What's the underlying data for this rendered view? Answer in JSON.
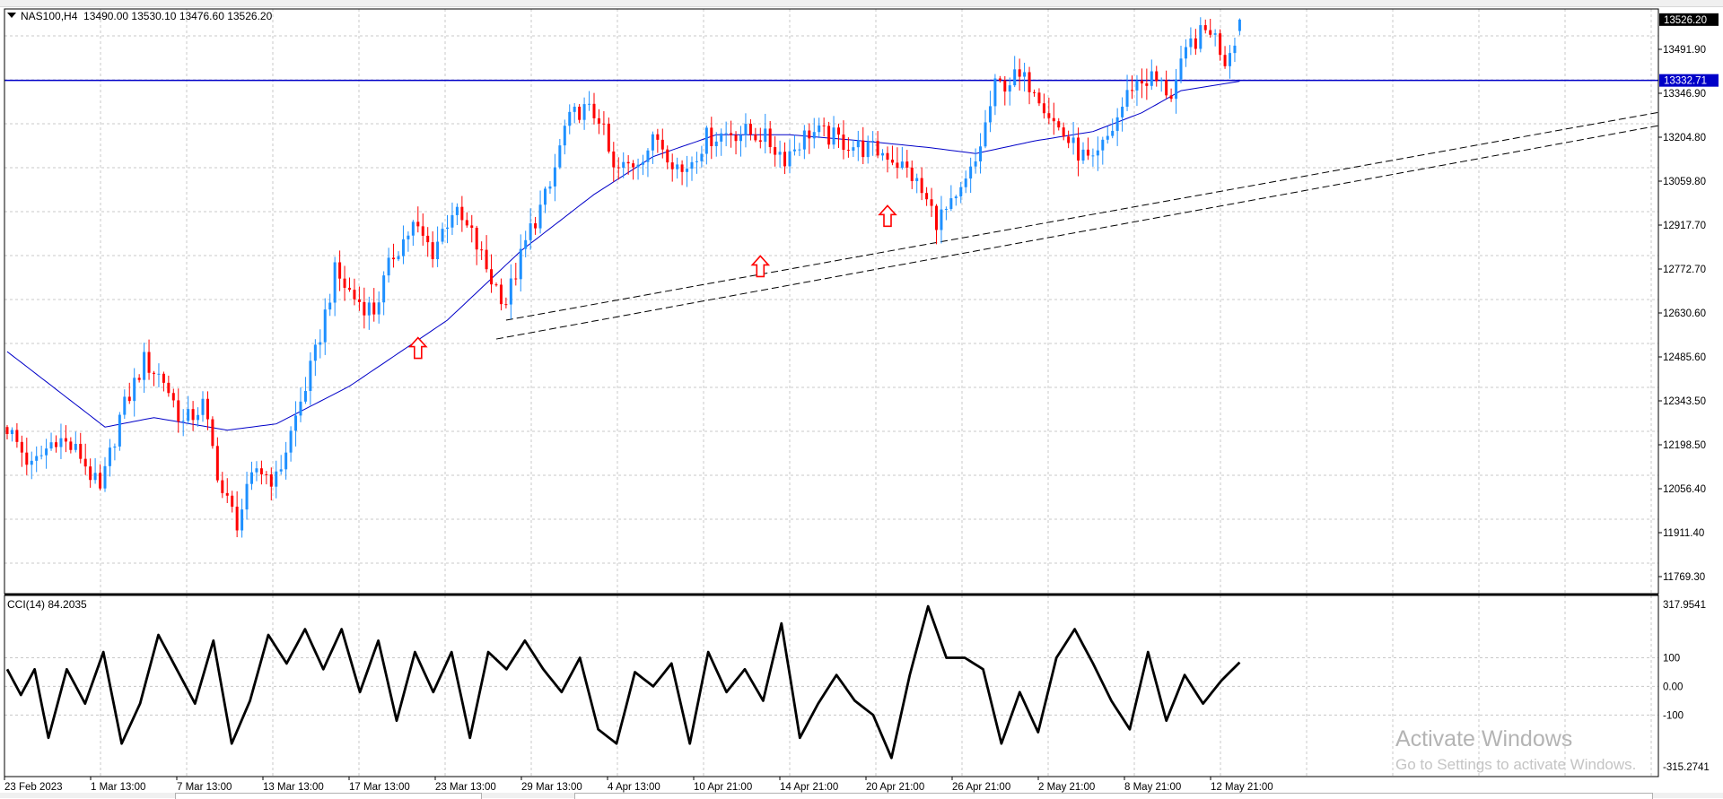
{
  "header": {
    "symbol": "NAS100,H4",
    "ohlc": "13490.00 13530.10 13476.60 13526.20"
  },
  "indicator": {
    "label": "CCI(14) 84.2035"
  },
  "price_axis": {
    "labels": [
      "13491.90",
      "13346.90",
      "13204.80",
      "13059.80",
      "12917.70",
      "12772.70",
      "12630.60",
      "12485.60",
      "12343.50",
      "12198.50",
      "12056.40",
      "11911.40",
      "11769.30"
    ],
    "current_price": "13526.20",
    "hline_price": "13332.71"
  },
  "cci_axis": {
    "labels": [
      "317.9541",
      "100",
      "0.00",
      "-100",
      "-315.2741"
    ]
  },
  "time_axis": {
    "labels": [
      "23 Feb 2023",
      "1 Mar 13:00",
      "7 Mar 13:00",
      "13 Mar 13:00",
      "17 Mar 13:00",
      "23 Mar 13:00",
      "29 Mar 13:00",
      "4 Apr 13:00",
      "10 Apr 21:00",
      "14 Apr 21:00",
      "20 Apr 21:00",
      "26 Apr 21:00",
      "2 May 21:00",
      "8 May 21:00",
      "12 May 21:00"
    ]
  },
  "watermark": {
    "line1": "Activate Windows",
    "line2": "Go to Settings to activate Windows."
  },
  "colors": {
    "bull": "#1e90ff",
    "bear": "#ff0000",
    "ma": "#0000c8",
    "hline": "#0000c8",
    "cci": "#000000",
    "grid": "#c8c8c8",
    "arrow": "#ff0000"
  },
  "chart_data": [
    {
      "type": "candlestick",
      "symbol": "NAS100",
      "timeframe": "H4",
      "ylim": [
        11700,
        13560
      ],
      "close_path_anchors": [
        [
          0,
          12230
        ],
        [
          5,
          12100
        ],
        [
          10,
          12200
        ],
        [
          15,
          12140
        ],
        [
          19,
          12020
        ],
        [
          23,
          12260
        ],
        [
          28,
          12440
        ],
        [
          32,
          12380
        ],
        [
          36,
          12240
        ],
        [
          40,
          12300
        ],
        [
          44,
          12020
        ],
        [
          47,
          11930
        ],
        [
          51,
          12100
        ],
        [
          55,
          12060
        ],
        [
          59,
          12260
        ],
        [
          63,
          12460
        ],
        [
          67,
          12720
        ],
        [
          71,
          12640
        ],
        [
          75,
          12600
        ],
        [
          79,
          12780
        ],
        [
          83,
          12870
        ],
        [
          87,
          12790
        ],
        [
          91,
          12920
        ],
        [
          95,
          12840
        ],
        [
          99,
          12700
        ],
        [
          102,
          12630
        ],
        [
          107,
          12860
        ],
        [
          111,
          12990
        ],
        [
          114,
          13180
        ],
        [
          117,
          13240
        ],
        [
          121,
          13220
        ],
        [
          124,
          13040
        ],
        [
          128,
          13070
        ],
        [
          133,
          13150
        ],
        [
          138,
          13040
        ],
        [
          143,
          13150
        ],
        [
          148,
          13170
        ],
        [
          154,
          13160
        ],
        [
          159,
          13090
        ],
        [
          164,
          13170
        ],
        [
          169,
          13150
        ],
        [
          174,
          13120
        ],
        [
          180,
          13100
        ],
        [
          185,
          13030
        ],
        [
          190,
          12890
        ],
        [
          194,
          12940
        ],
        [
          198,
          13070
        ],
        [
          202,
          13310
        ],
        [
          206,
          13340
        ],
        [
          210,
          13320
        ],
        [
          214,
          13200
        ],
        [
          218,
          13120
        ],
        [
          222,
          13060
        ],
        [
          226,
          13180
        ],
        [
          230,
          13320
        ],
        [
          234,
          13340
        ],
        [
          238,
          13290
        ],
        [
          242,
          13450
        ],
        [
          246,
          13500
        ],
        [
          249,
          13400
        ],
        [
          252,
          13510
        ]
      ],
      "last_ohlc": {
        "open": 13490.0,
        "high": 13530.1,
        "low": 13476.6,
        "close": 13526.2
      },
      "moving_average": {
        "period_label": "",
        "anchors": [
          [
            0,
            12470
          ],
          [
            20,
            12230
          ],
          [
            30,
            12260
          ],
          [
            45,
            12220
          ],
          [
            55,
            12240
          ],
          [
            70,
            12360
          ],
          [
            90,
            12570
          ],
          [
            105,
            12790
          ],
          [
            120,
            12970
          ],
          [
            132,
            13090
          ],
          [
            145,
            13160
          ],
          [
            160,
            13160
          ],
          [
            175,
            13140
          ],
          [
            188,
            13120
          ],
          [
            198,
            13100
          ],
          [
            210,
            13140
          ],
          [
            222,
            13170
          ],
          [
            232,
            13230
          ],
          [
            240,
            13300
          ],
          [
            252,
            13330
          ]
        ]
      },
      "horizontal_line": 13332.71,
      "trendlines": [
        {
          "from": [
            102,
            12570
          ],
          "to": [
            380,
            13350
          ]
        },
        {
          "from": [
            100,
            12510
          ],
          "to": [
            380,
            13310
          ]
        }
      ],
      "markers": [
        "up-arrow",
        "up-arrow",
        "up-arrow"
      ]
    },
    {
      "type": "line",
      "name": "CCI(14)",
      "last_value": 84.2035,
      "ylim": [
        -315.2741,
        317.9541
      ],
      "levels": [
        100,
        0,
        -100
      ],
      "anchors": [
        [
          0,
          60
        ],
        [
          3,
          -30
        ],
        [
          6,
          60
        ],
        [
          9,
          -180
        ],
        [
          13,
          60
        ],
        [
          17,
          -60
        ],
        [
          21,
          120
        ],
        [
          25,
          -200
        ],
        [
          29,
          -60
        ],
        [
          33,
          180
        ],
        [
          37,
          60
        ],
        [
          41,
          -60
        ],
        [
          45,
          160
        ],
        [
          49,
          -200
        ],
        [
          53,
          -50
        ],
        [
          57,
          180
        ],
        [
          61,
          80
        ],
        [
          65,
          200
        ],
        [
          69,
          60
        ],
        [
          73,
          200
        ],
        [
          77,
          -20
        ],
        [
          81,
          160
        ],
        [
          85,
          -120
        ],
        [
          89,
          120
        ],
        [
          93,
          -20
        ],
        [
          97,
          120
        ],
        [
          101,
          -180
        ],
        [
          105,
          120
        ],
        [
          109,
          60
        ],
        [
          113,
          160
        ],
        [
          117,
          60
        ],
        [
          121,
          -20
        ],
        [
          125,
          100
        ],
        [
          129,
          -150
        ],
        [
          133,
          -200
        ],
        [
          137,
          50
        ],
        [
          141,
          0
        ],
        [
          145,
          80
        ],
        [
          149,
          -200
        ],
        [
          153,
          120
        ],
        [
          157,
          -20
        ],
        [
          161,
          60
        ],
        [
          165,
          -50
        ],
        [
          169,
          220
        ],
        [
          173,
          -180
        ],
        [
          177,
          -60
        ],
        [
          181,
          40
        ],
        [
          185,
          -50
        ],
        [
          189,
          -100
        ],
        [
          193,
          -250
        ],
        [
          197,
          40
        ],
        [
          201,
          280
        ],
        [
          205,
          100
        ],
        [
          209,
          100
        ],
        [
          213,
          60
        ],
        [
          217,
          -200
        ],
        [
          221,
          -20
        ],
        [
          225,
          -160
        ],
        [
          229,
          100
        ],
        [
          233,
          200
        ],
        [
          237,
          80
        ],
        [
          241,
          -50
        ],
        [
          245,
          -150
        ],
        [
          249,
          120
        ],
        [
          253,
          -120
        ],
        [
          257,
          40
        ],
        [
          261,
          -60
        ],
        [
          265,
          20
        ],
        [
          269,
          84.2
        ]
      ]
    }
  ]
}
